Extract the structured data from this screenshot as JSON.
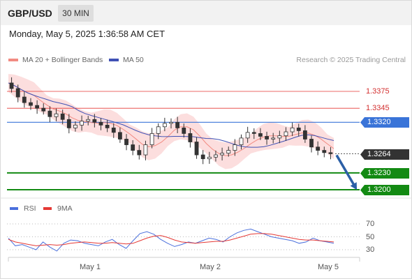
{
  "header": {
    "symbol": "GBP/USD",
    "timeframe": "30 MIN"
  },
  "datetime": "Monday, May 5, 2025 1:36:58 AM CET",
  "legend": {
    "ma20": {
      "label": "MA 20 + Bollinger Bands",
      "color": "#f28b82"
    },
    "ma50": {
      "label": "MA 50",
      "color": "#3f51b5"
    }
  },
  "source": "Research © 2025 Trading Central",
  "levels": {
    "r2": {
      "value": "1.3375",
      "color": "#e53935"
    },
    "r1": {
      "value": "1.3345",
      "color": "#e53935"
    },
    "pivot": {
      "value": "1.3320",
      "color": "#3a74d8"
    },
    "last": {
      "value": "1.3264",
      "color": "#333333"
    },
    "s1": {
      "value": "1.3230",
      "color": "#138a13"
    },
    "s2": {
      "value": "1.3200",
      "color": "#138a13"
    }
  },
  "rsi_panel": {
    "rsi_label": "RSI",
    "ma_label": "9MA",
    "rsi_color": "#4a6fdc",
    "ma_color": "#e53935",
    "levels": [
      "70",
      "50",
      "30"
    ]
  },
  "xaxis": {
    "ticks": [
      "May 1",
      "May 2",
      "May 5"
    ]
  },
  "chart_data": [
    {
      "type": "candlestick",
      "title": "GBP/USD",
      "ylim": [
        1.319,
        1.34
      ],
      "series": [
        {
          "name": "MA 20 + Bollinger Bands",
          "type": "band"
        },
        {
          "name": "MA 50",
          "type": "line"
        }
      ],
      "key_levels": [
        1.3375,
        1.3345,
        1.332,
        1.3264,
        1.323,
        1.32
      ],
      "price_path": [
        1.339,
        1.338,
        1.3365,
        1.3355,
        1.335,
        1.3345,
        1.334,
        1.333,
        1.3335,
        1.3325,
        1.331,
        1.3315,
        1.3322,
        1.3325,
        1.332,
        1.3315,
        1.331,
        1.3302,
        1.329,
        1.328,
        1.327,
        1.3262,
        1.328,
        1.33,
        1.3312,
        1.3318,
        1.332,
        1.331,
        1.33,
        1.3285,
        1.3262,
        1.3255,
        1.3258,
        1.3262,
        1.3265,
        1.327,
        1.328,
        1.3292,
        1.3302,
        1.33,
        1.3295,
        1.329,
        1.3292,
        1.3296,
        1.3303,
        1.331,
        1.3305,
        1.329,
        1.3276,
        1.327,
        1.3266,
        1.3264
      ],
      "forecast": {
        "from": 1.3264,
        "to": 1.32
      }
    },
    {
      "type": "line",
      "title": "",
      "ylim": [
        20,
        80
      ],
      "yticks": [
        70,
        50,
        30
      ],
      "series": [
        {
          "name": "RSI",
          "values": [
            48,
            36,
            38,
            34,
            30,
            42,
            34,
            28,
            40,
            45,
            44,
            40,
            38,
            36,
            42,
            46,
            38,
            32,
            44,
            55,
            58,
            54,
            46,
            40,
            35,
            38,
            42,
            40,
            44,
            48,
            46,
            42,
            50,
            56,
            60,
            62,
            58,
            54,
            50,
            48,
            46,
            44,
            40,
            42,
            48,
            44,
            42,
            40
          ]
        },
        {
          "name": "9MA",
          "values": [
            46,
            42,
            40,
            38,
            36,
            37,
            38,
            37,
            38,
            40,
            41,
            42,
            41,
            40,
            40,
            41,
            40,
            39,
            40,
            44,
            48,
            51,
            52,
            49,
            45,
            42,
            41,
            40,
            41,
            42,
            43,
            43,
            45,
            48,
            51,
            54,
            55,
            55,
            54,
            52,
            50,
            48,
            46,
            45,
            45,
            44,
            43,
            42
          ]
        }
      ]
    }
  ]
}
